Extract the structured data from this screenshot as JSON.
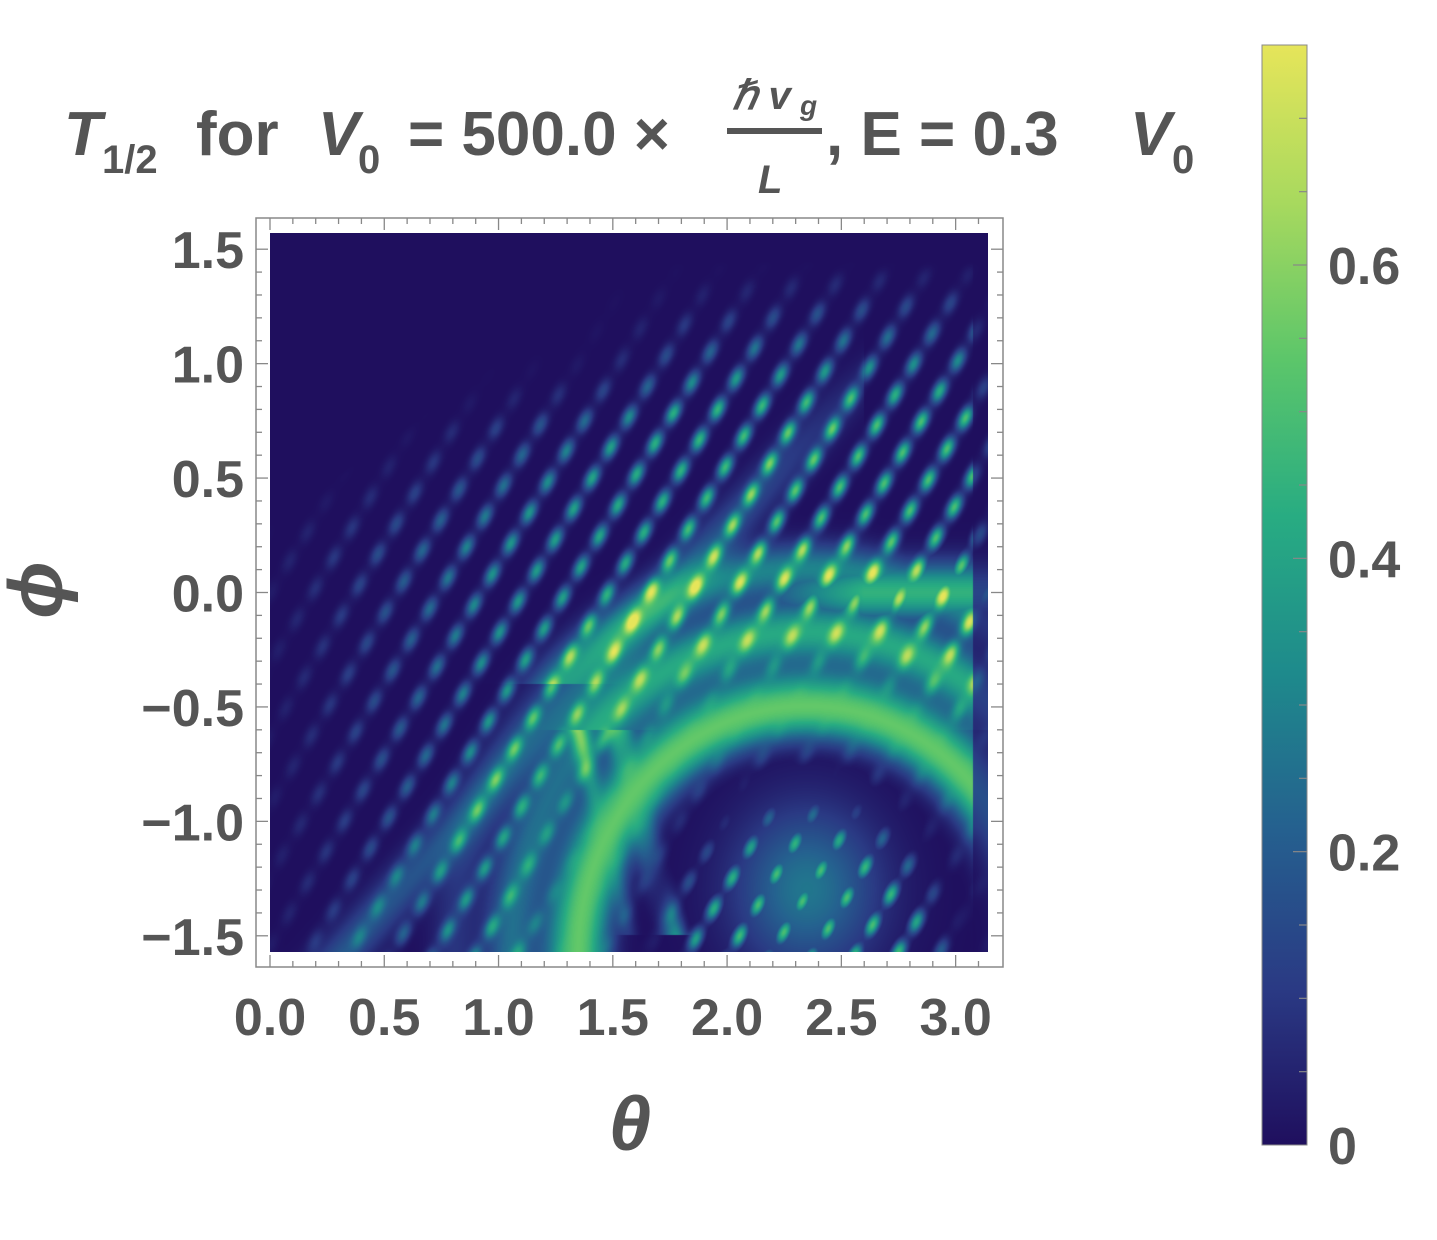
{
  "title": {
    "t_symbol": "T",
    "t_subscript": "1/2",
    "for_text": "for",
    "v0_symbol": "V",
    "v0_subscript": "0",
    "equals_value": "= 500.0 ×",
    "frac_numerator": "ℏ v",
    "frac_numerator_subscript": "g",
    "frac_denominator": "L",
    "energy_text": ", E = 0.3",
    "v0_symbol_2": "V",
    "v0_subscript_2": "0"
  },
  "chart_data": {
    "type": "heatmap",
    "title": "T1/2 for V0 = 500.0 × ℏ vg / L, E = 0.3 V0",
    "xlabel": "θ",
    "ylabel": "ϕ",
    "xlim": [
      0,
      3.1416
    ],
    "ylim": [
      -1.5708,
      1.5708
    ],
    "xticks": [
      "0.0",
      "0.5",
      "1.0",
      "1.5",
      "2.0",
      "2.5",
      "3.0"
    ],
    "xtick_values": [
      0,
      0.5,
      1.0,
      1.5,
      2.0,
      2.5,
      3.0
    ],
    "yticks": [
      "1.5",
      "1.0",
      "0.5",
      "0.0",
      "−0.5",
      "−1.0",
      "−1.5"
    ],
    "ytick_values": [
      1.5,
      1.0,
      0.5,
      0.0,
      -0.5,
      -1.0,
      -1.5
    ],
    "colorbar": {
      "range": [
        0,
        0.75
      ],
      "ticks": [
        "0",
        "0.2",
        "0.4",
        "0.6"
      ],
      "tick_values": [
        0,
        0.2,
        0.4,
        0.6
      ],
      "colormap": "viridis",
      "colors": [
        "#1f0f5e",
        "#2a3a84",
        "#25608f",
        "#1e8a8c",
        "#28ac82",
        "#5cc66a",
        "#a8d95e",
        "#e6e55a"
      ]
    },
    "features": [
      {
        "name": "dark-region",
        "theta_range": [
          0,
          1.8
        ],
        "phi_range": [
          0.7,
          1.57
        ],
        "value": 0.0
      },
      {
        "name": "diagonal-fringes",
        "theta_range": [
          0.2,
          3.0
        ],
        "phi_range": [
          -1.57,
          1.3
        ],
        "value_range": [
          0.1,
          0.5
        ]
      },
      {
        "name": "horizontal-lobe",
        "theta_center": 2.8,
        "phi_center": 0.0,
        "value": 0.45
      },
      {
        "name": "outer-arc",
        "theta_center": 2.35,
        "phi_center": -1.6,
        "radius": 1.0,
        "value": 0.55
      },
      {
        "name": "dark-arc",
        "theta_center": 2.35,
        "phi_center": -1.6,
        "radius": 0.7,
        "value": 0.0
      },
      {
        "name": "central-blob",
        "theta_center": 2.35,
        "phi_center": -1.3,
        "value": 0.27
      },
      {
        "name": "bright-stripes",
        "theta_values": [
          1.45,
          1.6,
          1.65
        ],
        "phi_range": [
          -1.5,
          -0.6
        ],
        "value": 0.7
      }
    ]
  }
}
